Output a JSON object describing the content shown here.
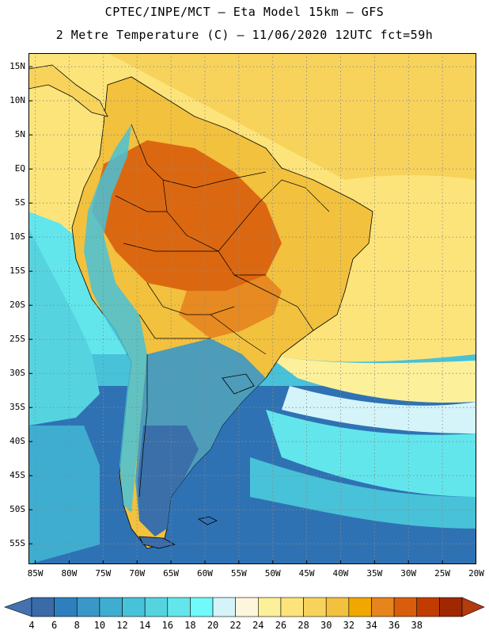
{
  "header": {
    "line1": "CPTEC/INPE/MCT –  Eta Model 15km – GFS",
    "line2": "2 Metre Temperature (C) – 11/06/2020 12UTC fct=59h"
  },
  "map": {
    "lon_range": [
      -86,
      -20
    ],
    "lat_range": [
      -58,
      17
    ],
    "lat_ticks": [
      "15N",
      "10N",
      "5N",
      "EQ",
      "5S",
      "10S",
      "15S",
      "20S",
      "25S",
      "30S",
      "35S",
      "40S",
      "45S",
      "50S",
      "55S"
    ],
    "lat_values": [
      15,
      10,
      5,
      0,
      -5,
      -10,
      -15,
      -20,
      -25,
      -30,
      -35,
      -40,
      -45,
      -50,
      -55
    ],
    "lon_ticks": [
      "85W",
      "80W",
      "75W",
      "70W",
      "65W",
      "60W",
      "55W",
      "50W",
      "45W",
      "40W",
      "35W",
      "30W",
      "25W",
      "20W"
    ],
    "lon_values": [
      -85,
      -80,
      -75,
      -70,
      -65,
      -60,
      -55,
      -50,
      -45,
      -40,
      -35,
      -30,
      -25,
      -20
    ],
    "grid": true
  },
  "colorbar": {
    "labels": [
      "4",
      "6",
      "8",
      "10",
      "12",
      "14",
      "16",
      "18",
      "20",
      "22",
      "24",
      "26",
      "28",
      "30",
      "32",
      "34",
      "36",
      "38"
    ],
    "colors": [
      "#3a6aa8",
      "#2e7fbd",
      "#3a98c8",
      "#3eadd0",
      "#48c2d8",
      "#55d4e0",
      "#62e6ec",
      "#70fafa",
      "#d4f4fa",
      "#fdf6dc",
      "#fdf09a",
      "#fde47a",
      "#f8d35c",
      "#f2c13e",
      "#f0a800",
      "#e6841e",
      "#d85e0c",
      "#c23c00",
      "#a02800"
    ],
    "under_color": "#4472b0",
    "over_color": "#b03c10"
  }
}
